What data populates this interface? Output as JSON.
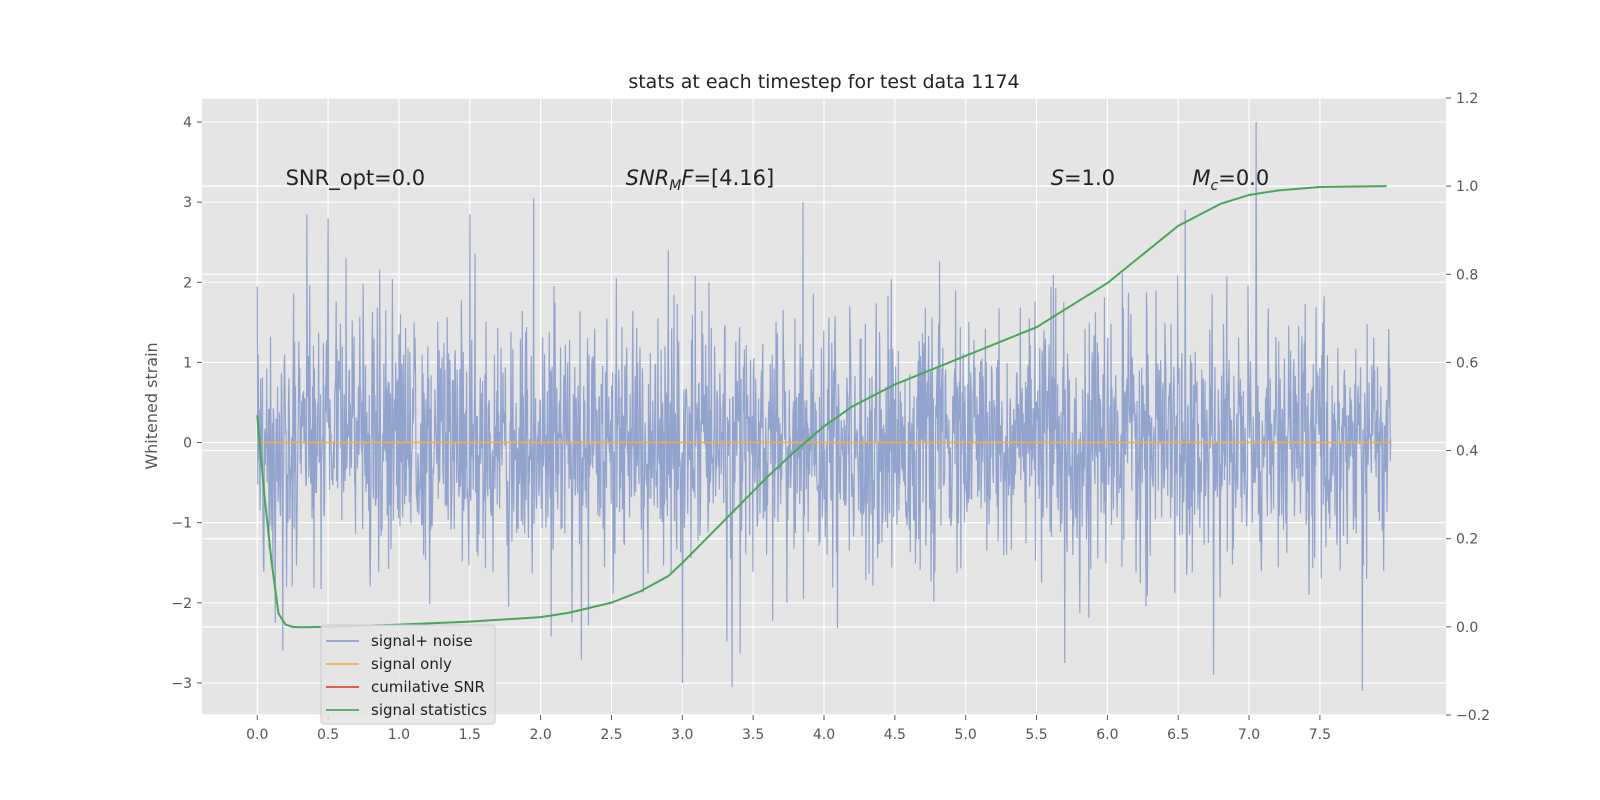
{
  "chart_data": {
    "type": "line",
    "title": "stats at each timestep for test data 1174",
    "ylabel": "Whitened strain",
    "xlim": [
      -0.39,
      8.39
    ],
    "ylim": [
      -3.4,
      4.3
    ],
    "y2lim": [
      -0.2,
      1.2
    ],
    "xticks": [
      "0.0",
      "0.5",
      "1.0",
      "1.5",
      "2.0",
      "2.5",
      "3.0",
      "3.5",
      "4.0",
      "4.5",
      "5.0",
      "5.5",
      "6.0",
      "6.5",
      "7.0",
      "7.5"
    ],
    "yticks": [
      "4",
      "3",
      "2",
      "1",
      "0",
      "−1",
      "−2",
      "−3"
    ],
    "y2ticks": [
      "1.2",
      "1.0",
      "0.8",
      "0.6",
      "0.4",
      "0.2",
      "0.0",
      "−0.2"
    ],
    "grid": true,
    "legend_location": "lower-left",
    "annotations": [
      {
        "x": 0.2,
        "y": 3.3,
        "text": "SNR_opt=0.0"
      },
      {
        "x": 2.6,
        "y": 3.3,
        "base": "SNR",
        "sub": "M",
        "rest": "F=[4.16]"
      },
      {
        "x": 5.6,
        "y": 3.3,
        "base": "S",
        "sub": "",
        "rest": "=1.0"
      },
      {
        "x": 6.6,
        "y": 3.3,
        "base": "M",
        "sub": "c",
        "rest": "=0.0"
      }
    ],
    "noise_peaks": [
      {
        "x": 0.35,
        "y": 2.85
      },
      {
        "x": 0.5,
        "y": 2.8
      },
      {
        "x": 1.5,
        "y": 2.85
      },
      {
        "x": 1.95,
        "y": 3.05
      },
      {
        "x": 2.9,
        "y": 2.4
      },
      {
        "x": 3.85,
        "y": 3.0
      },
      {
        "x": 6.55,
        "y": 2.9
      },
      {
        "x": 7.05,
        "y": 4.0
      },
      {
        "x": 3.0,
        "y": -3.0
      },
      {
        "x": 3.35,
        "y": -3.05
      },
      {
        "x": 7.8,
        "y": -3.1
      },
      {
        "x": 5.7,
        "y": -2.75
      },
      {
        "x": 2.9,
        "y": -2.7
      },
      {
        "x": 0.18,
        "y": -2.6
      },
      {
        "x": 6.75,
        "y": -2.9
      }
    ],
    "series": [
      {
        "name": "signal+ noise",
        "color": "#8da0cb",
        "duration": 8.0,
        "spread_sigma": 0.75
      },
      {
        "name": "signal only",
        "color": "#f0b04a",
        "x": [
          0.0,
          8.0
        ],
        "y": [
          0.0,
          0.0
        ]
      },
      {
        "name": "cumilative SNR",
        "color": "#e24a33",
        "x": [],
        "y": []
      },
      {
        "name": "signal statistics",
        "color": "#4aa55a",
        "axis": "right",
        "x": [
          0.0,
          0.05,
          0.1,
          0.15,
          0.2,
          0.25,
          0.3,
          0.5,
          1.0,
          1.5,
          2.0,
          2.2,
          2.5,
          2.7,
          2.9,
          3.0,
          3.2,
          3.4,
          3.6,
          3.8,
          4.0,
          4.2,
          4.5,
          5.0,
          5.5,
          6.0,
          6.5,
          6.8,
          7.0,
          7.2,
          7.5,
          7.97
        ],
        "y": [
          0.48,
          0.3,
          0.15,
          0.03,
          0.005,
          0.0,
          -0.001,
          0.0,
          0.005,
          0.012,
          0.022,
          0.032,
          0.055,
          0.08,
          0.115,
          0.145,
          0.21,
          0.275,
          0.34,
          0.4,
          0.455,
          0.5,
          0.55,
          0.615,
          0.68,
          0.78,
          0.91,
          0.96,
          0.98,
          0.99,
          0.998,
          1.0
        ]
      }
    ]
  }
}
